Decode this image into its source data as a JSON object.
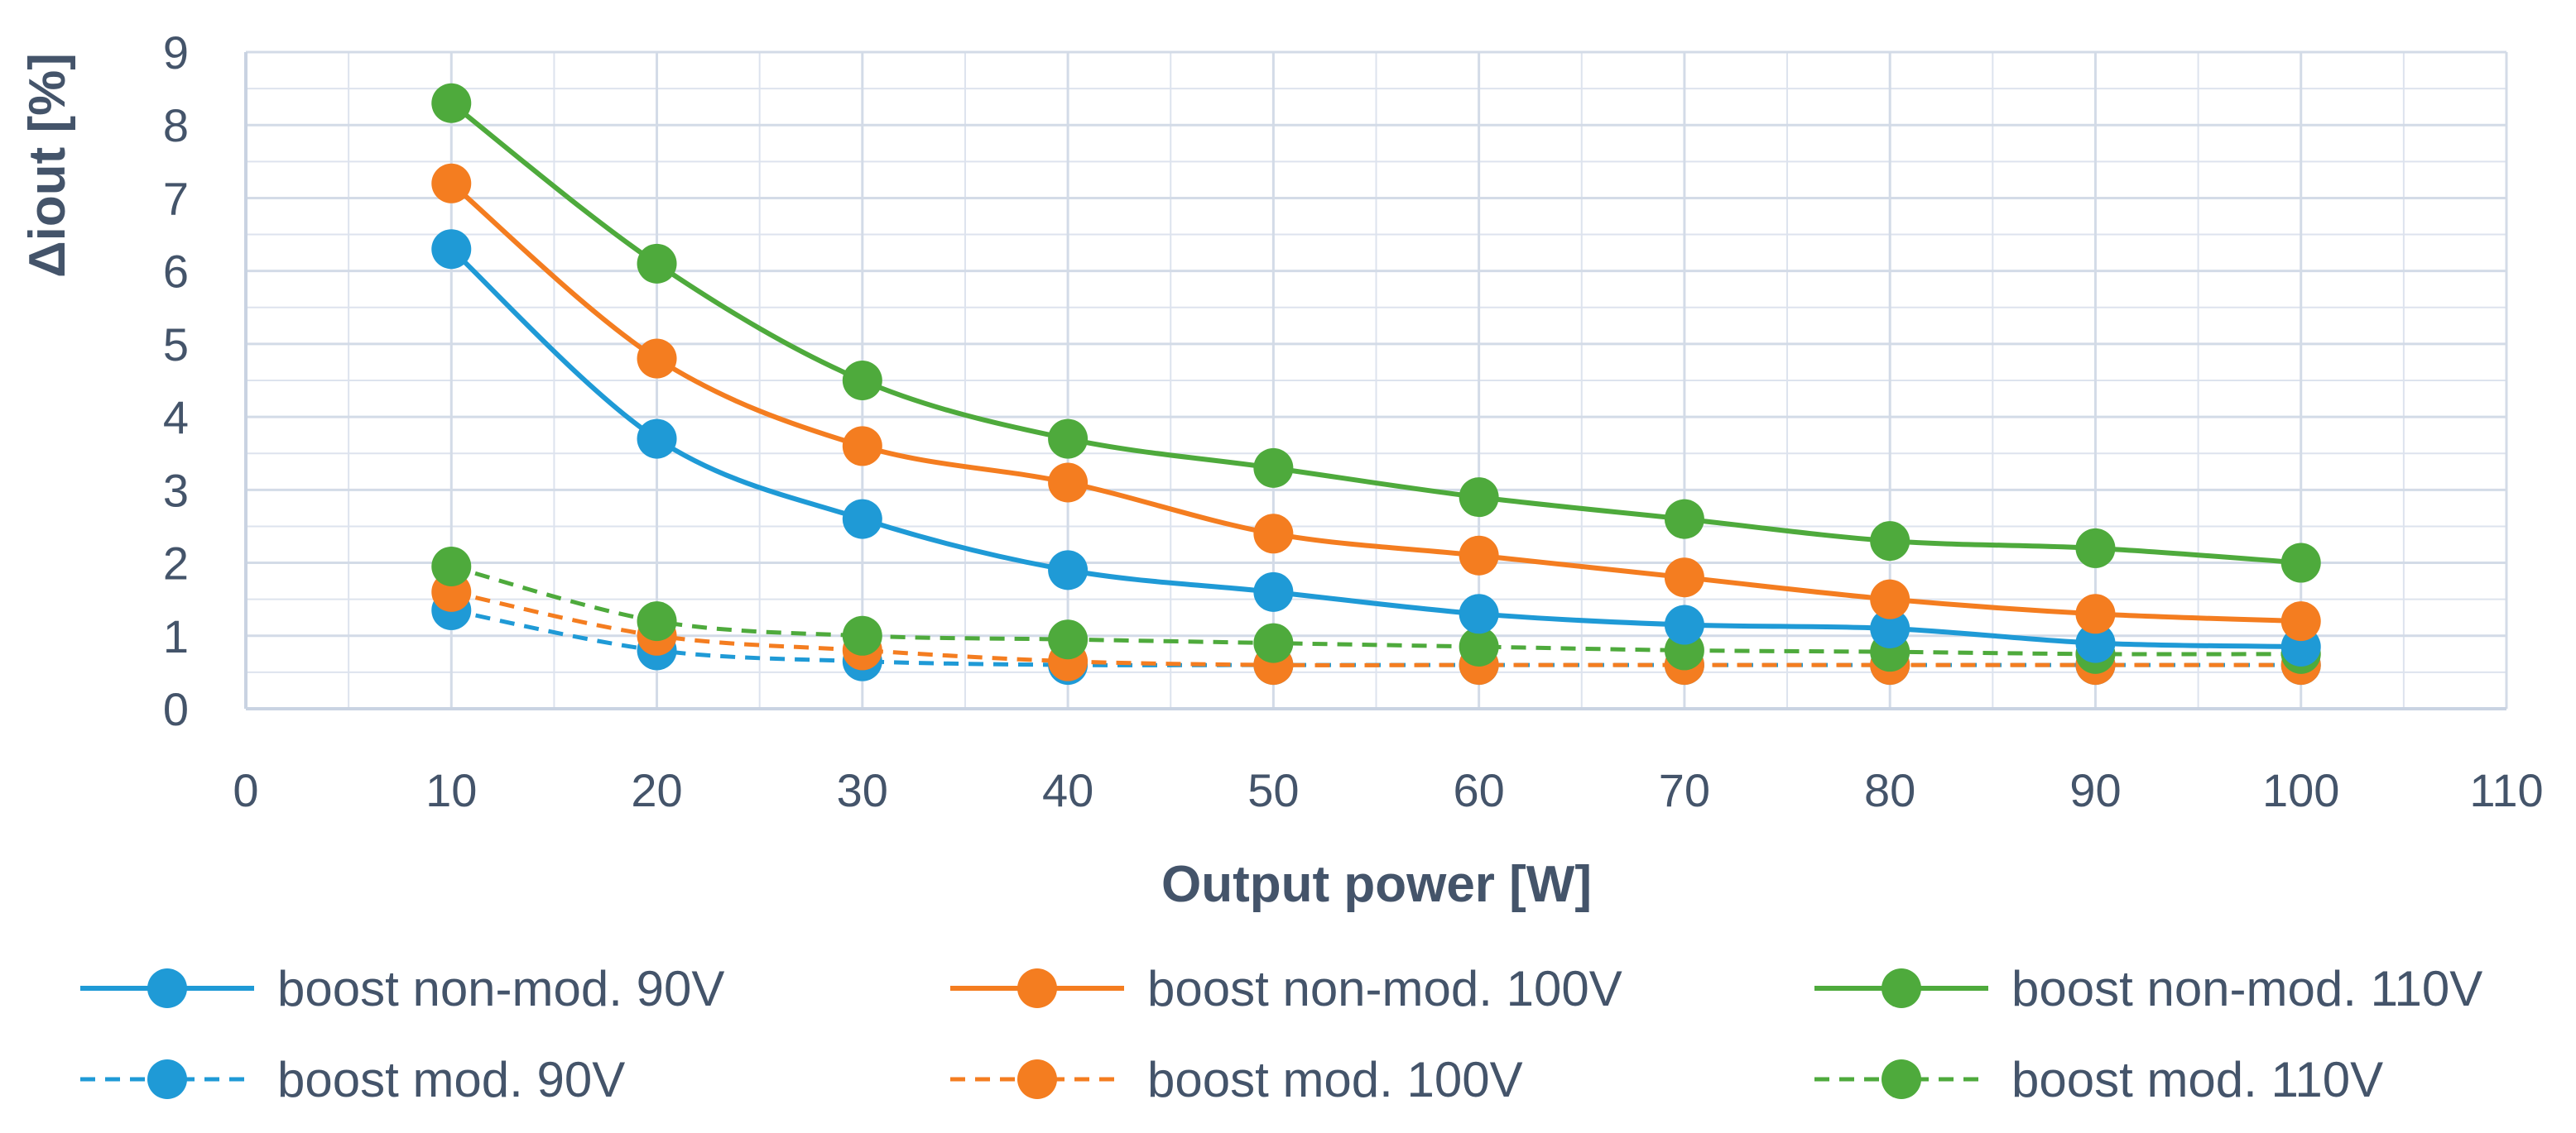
{
  "chart_data": {
    "type": "line",
    "title": "",
    "xlabel": "Output power [W]",
    "ylabel": "Δiout [%]",
    "xlim": [
      0,
      110
    ],
    "ylim": [
      0,
      9
    ],
    "x_ticks": [
      "0",
      "10",
      "20",
      "30",
      "40",
      "50",
      "60",
      "70",
      "80",
      "90",
      "100",
      "110"
    ],
    "y_ticks": [
      "0",
      "1",
      "2",
      "3",
      "4",
      "5",
      "6",
      "7",
      "8",
      "9"
    ],
    "grid": true,
    "legend_position": "bottom",
    "x": [
      10,
      20,
      30,
      40,
      50,
      60,
      70,
      80,
      90,
      100
    ],
    "series": [
      {
        "name": "boost non-mod. 90V",
        "color": "#1f9ad6",
        "dashed": false,
        "values": [
          6.3,
          3.7,
          2.6,
          1.9,
          1.6,
          1.3,
          1.15,
          1.1,
          0.9,
          0.85
        ]
      },
      {
        "name": "boost non-mod. 100V",
        "color": "#f47d20",
        "dashed": false,
        "values": [
          7.2,
          4.8,
          3.6,
          3.1,
          2.4,
          2.1,
          1.8,
          1.5,
          1.3,
          1.2
        ]
      },
      {
        "name": "boost non-mod. 110V",
        "color": "#4eaa3c",
        "dashed": false,
        "values": [
          8.3,
          6.1,
          4.5,
          3.7,
          3.3,
          2.9,
          2.6,
          2.3,
          2.2,
          2.0
        ]
      },
      {
        "name": "boost mod. 90V",
        "color": "#1f9ad6",
        "dashed": true,
        "values": [
          1.35,
          0.8,
          0.65,
          0.6,
          0.6,
          0.6,
          0.6,
          0.6,
          0.6,
          0.6
        ]
      },
      {
        "name": "boost mod. 100V",
        "color": "#f47d20",
        "dashed": true,
        "values": [
          1.6,
          1.0,
          0.8,
          0.65,
          0.6,
          0.6,
          0.6,
          0.6,
          0.6,
          0.6
        ]
      },
      {
        "name": "boost mod. 110V",
        "color": "#4eaa3c",
        "dashed": true,
        "values": [
          1.95,
          1.2,
          1.0,
          0.95,
          0.9,
          0.85,
          0.8,
          0.78,
          0.75,
          0.75
        ]
      }
    ]
  }
}
